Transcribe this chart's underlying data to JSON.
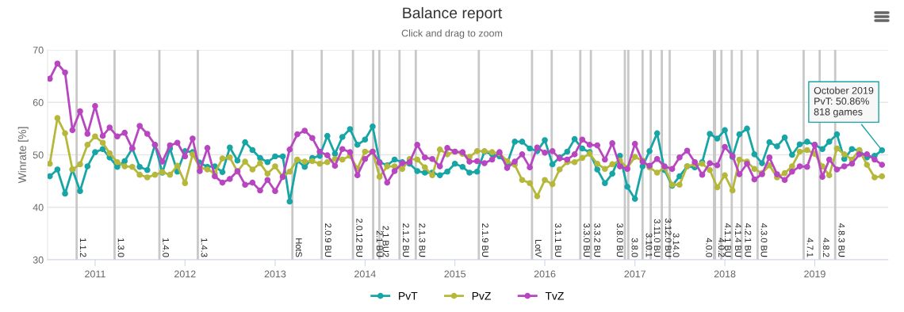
{
  "chart_data": {
    "type": "line",
    "title": "Balance report",
    "subtitle": "Click and drag to zoom",
    "ylabel": "Winrate [%]",
    "x": [
      "2010-07",
      "2010-08",
      "2010-09",
      "2010-10",
      "2010-11",
      "2010-12",
      "2011-01",
      "2011-02",
      "2011-03",
      "2011-04",
      "2011-05",
      "2011-06",
      "2011-07",
      "2011-08",
      "2011-09",
      "2011-10",
      "2011-11",
      "2011-12",
      "2012-01",
      "2012-02",
      "2012-03",
      "2012-04",
      "2012-05",
      "2012-06",
      "2012-07",
      "2012-08",
      "2012-09",
      "2012-10",
      "2012-11",
      "2012-12",
      "2013-01",
      "2013-02",
      "2013-03",
      "2013-04",
      "2013-05",
      "2013-06",
      "2013-07",
      "2013-08",
      "2013-09",
      "2013-10",
      "2013-11",
      "2013-12",
      "2014-01",
      "2014-02",
      "2014-03",
      "2014-04",
      "2014-05",
      "2014-06",
      "2014-07",
      "2014-08",
      "2014-09",
      "2014-10",
      "2014-11",
      "2014-12",
      "2015-01",
      "2015-02",
      "2015-03",
      "2015-04",
      "2015-05",
      "2015-06",
      "2015-07",
      "2015-08",
      "2015-09",
      "2015-10",
      "2015-11",
      "2015-12",
      "2016-01",
      "2016-02",
      "2016-03",
      "2016-04",
      "2016-05",
      "2016-06",
      "2016-07",
      "2016-08",
      "2016-09",
      "2016-10",
      "2016-11",
      "2016-12",
      "2017-01",
      "2017-02",
      "2017-03",
      "2017-04",
      "2017-05",
      "2017-06",
      "2017-07",
      "2017-08",
      "2017-09",
      "2017-10",
      "2017-11",
      "2017-12",
      "2018-01",
      "2018-02",
      "2018-03",
      "2018-04",
      "2018-05",
      "2018-06",
      "2018-07",
      "2018-08",
      "2018-09",
      "2018-10",
      "2018-11",
      "2018-12",
      "2019-01",
      "2019-02",
      "2019-03",
      "2019-04",
      "2019-05",
      "2019-06",
      "2019-07",
      "2019-08",
      "2019-09",
      "2019-10"
    ],
    "series": [
      {
        "name": "PvT",
        "color": "#17a5a5",
        "values": [
          45.9,
          47.2,
          42.6,
          47.2,
          43.1,
          47.8,
          50.5,
          51.1,
          49.5,
          47.7,
          48.8,
          51.2,
          47.7,
          47.1,
          51.9,
          46.6,
          51.2,
          46.8,
          50.7,
          50.5,
          48.5,
          47.7,
          47.8,
          46.7,
          51.4,
          48.9,
          52.4,
          50.9,
          49.4,
          48.6,
          49.7,
          49.7,
          41.1,
          48.9,
          47.7,
          49.4,
          49.8,
          53.6,
          50.2,
          53.4,
          54.9,
          51.9,
          52.9,
          55.4,
          48.6,
          48.0,
          49.1,
          48.6,
          48.3,
          46.9,
          46.6,
          46.6,
          46.1,
          46.8,
          48.3,
          47.7,
          46.6,
          46.8,
          50.6,
          50.1,
          49.7,
          48.3,
          52.5,
          52.5,
          51.2,
          50.7,
          52.8,
          48.2,
          49.5,
          50.6,
          53.0,
          51.2,
          50.5,
          47.2,
          44.6,
          46.4,
          49.8,
          43.9,
          41.6,
          47.8,
          50.7,
          54.1,
          47.1,
          44.1,
          45.9,
          47.8,
          47.6,
          48.6,
          54.0,
          53.1,
          54.7,
          49.6,
          53.9,
          55.0,
          50.1,
          48.4,
          52.4,
          51.6,
          53.3,
          50.0,
          52.0,
          52.5,
          51.9,
          51.1,
          52.5,
          53.9,
          49.2,
          51.1,
          50.8,
          49.5,
          49.8,
          50.86
        ]
      },
      {
        "name": "PvZ",
        "color": "#b5b83a",
        "values": [
          48.3,
          57.0,
          54.1,
          47.2,
          48.2,
          51.9,
          53.5,
          52.3,
          50.3,
          48.6,
          47.8,
          47.7,
          46.2,
          45.7,
          46.2,
          46.7,
          46.2,
          47.9,
          44.6,
          50.1,
          47.6,
          47.2,
          46.5,
          49.3,
          49.5,
          46.8,
          48.7,
          47.2,
          48.4,
          46.4,
          47.8,
          45.8,
          46.8,
          49.1,
          48.7,
          48.8,
          48.3,
          48.6,
          49.2,
          49.1,
          49.8,
          47.4,
          50.6,
          50.6,
          45.8,
          47.8,
          47.8,
          47.3,
          49.2,
          49.1,
          47.6,
          46.1,
          51.0,
          50.1,
          50.6,
          50.2,
          49.6,
          50.7,
          50.7,
          50.5,
          50.3,
          48.8,
          48.1,
          45.2,
          44.6,
          42.1,
          45.2,
          44.4,
          47.2,
          48.6,
          48.6,
          49.4,
          50.2,
          48.3,
          47.3,
          48.2,
          48.9,
          47.5,
          49.6,
          48.9,
          47.6,
          46.6,
          47.6,
          44.3,
          44.3,
          47.8,
          48.2,
          48.3,
          47.1,
          43.8,
          46.1,
          43.2,
          49.1,
          48.7,
          47.3,
          46.5,
          48.0,
          45.7,
          46.5,
          47.8,
          50.6,
          50.9,
          50.2,
          47.8,
          46.1,
          51.2,
          50.1,
          49.1,
          50.9,
          48.1,
          45.7,
          45.9
        ]
      },
      {
        "name": "TvZ",
        "color": "#b846c0",
        "values": [
          64.5,
          67.4,
          65.7,
          54.7,
          58.3,
          54.0,
          59.3,
          53.6,
          55.2,
          53.5,
          54.2,
          51.2,
          55.5,
          54.0,
          51.9,
          48.7,
          51.8,
          52.3,
          49.7,
          53.1,
          46.9,
          51.3,
          45.9,
          44.7,
          45.4,
          46.9,
          44.3,
          44.7,
          43.2,
          45.2,
          43.1,
          45.8,
          51.0,
          53.9,
          54.6,
          53.2,
          50.6,
          49.9,
          47.9,
          51.1,
          50.5,
          46.1,
          49.2,
          50.6,
          48.5,
          44.7,
          46.9,
          48.4,
          48.6,
          51.9,
          49.5,
          49.2,
          47.8,
          51.3,
          50.6,
          50.5,
          48.7,
          48.8,
          48.4,
          49.1,
          50.5,
          47.5,
          48.7,
          50.1,
          47.6,
          51.4,
          50.4,
          50.7,
          49.3,
          49.1,
          50.1,
          52.9,
          51.9,
          51.8,
          49.1,
          52.2,
          47.8,
          47.3,
          52.1,
          48.7,
          47.9,
          49.2,
          47.8,
          47.3,
          49.5,
          50.8,
          48.6,
          46.2,
          48.4,
          48.0,
          51.5,
          49.8,
          46.3,
          48.3,
          45.3,
          46.3,
          49.5,
          46.3,
          45.2,
          46.8,
          47.8,
          47.7,
          51.9,
          45.8,
          49.1,
          47.2,
          47.8,
          48.3,
          50.1,
          50.1,
          49.1,
          48.1
        ]
      }
    ],
    "xlim": [
      "2010-06-22",
      "2019-10-26"
    ],
    "xticks": [
      "2011",
      "2012",
      "2013",
      "2014",
      "2015",
      "2016",
      "2017",
      "2018",
      "2019"
    ],
    "ylim": [
      30,
      70
    ],
    "yticks": [
      30,
      40,
      50,
      60,
      70
    ],
    "grid": "y",
    "legend": "bottom",
    "marker": "circle",
    "line_style": "solid",
    "ref_lines": [
      {
        "axis": "x",
        "value": "2010-10-18",
        "label": "1.1.2",
        "color": "#c8c8c8"
      },
      {
        "axis": "x",
        "value": "2011-03-21",
        "label": "1.3.0",
        "color": "#c8c8c8"
      },
      {
        "axis": "x",
        "value": "2011-09-19",
        "label": "1.4.0",
        "color": "#c8c8c8"
      },
      {
        "axis": "x",
        "value": "2012-02-22",
        "label": "1.4.3",
        "color": "#c8c8c8"
      },
      {
        "axis": "x",
        "value": "2013-03-12",
        "label": "HotS",
        "color": "#c8c8c8"
      },
      {
        "axis": "x",
        "value": "2013-07-09",
        "label": "2.0.9 BU",
        "color": "#c8c8c8"
      },
      {
        "axis": "x",
        "value": "2013-11-13",
        "label": "2.0.12 BU",
        "color": "#c8c8c8"
      },
      {
        "axis": "x",
        "value": "2014-02-03",
        "label": "2.1 BU",
        "color": "#c8c8c8"
      },
      {
        "axis": "x",
        "value": "2014-02-28",
        "label": "2.1 BU2",
        "color": "#c8c8c8"
      },
      {
        "axis": "x",
        "value": "2014-05-21",
        "label": "2.1.2 BU",
        "color": "#c8c8c8"
      },
      {
        "axis": "x",
        "value": "2014-07-26",
        "label": "2.1.3 BU",
        "color": "#c8c8c8"
      },
      {
        "axis": "x",
        "value": "2015-04-08",
        "label": "2.1.9 BU",
        "color": "#c8c8c8"
      },
      {
        "axis": "x",
        "value": "2015-11-10",
        "label": "LotV",
        "color": "#c8c8c8"
      },
      {
        "axis": "x",
        "value": "2016-01-29",
        "label": "3.1.1 BU",
        "color": "#c8c8c8"
      },
      {
        "axis": "x",
        "value": "2016-05-24",
        "label": "3.3.0 BU",
        "color": "#c8c8c8"
      },
      {
        "axis": "x",
        "value": "2016-07-06",
        "label": "3.3.2 BU",
        "color": "#c8c8c8"
      },
      {
        "axis": "x",
        "value": "2016-11-21",
        "label": "3.8.0 BU",
        "color": "#c8c8c8"
      },
      {
        "axis": "x",
        "value": "2016-12-05",
        "label": "3.8.0",
        "color": "#c8c8c8"
      },
      {
        "axis": "x",
        "value": "2017-02-01",
        "label": "3.10.1",
        "color": "#c8c8c8"
      },
      {
        "axis": "x",
        "value": "2017-03-06",
        "label": "3.11.0 BU",
        "color": "#c8c8c8"
      },
      {
        "axis": "x",
        "value": "2017-04-20",
        "label": "3.12.0 BU",
        "color": "#c8c8c8"
      },
      {
        "axis": "x",
        "value": "2017-05-22",
        "label": "3.14.0",
        "color": "#c8c8c8"
      },
      {
        "axis": "x",
        "value": "2017-11-18",
        "label": "4.0.0",
        "color": "#c8c8c8"
      },
      {
        "axis": "x",
        "value": "2017-11-22",
        "label": "4.0.2",
        "color": "#c8c8c8"
      },
      {
        "axis": "x",
        "value": "2017-12-18",
        "label": "4.1.1 BU",
        "color": "#c8c8c8"
      },
      {
        "axis": "x",
        "value": "2018-01-29",
        "label": "4.1.4 BU",
        "color": "#c8c8c8"
      },
      {
        "axis": "x",
        "value": "2018-03-10",
        "label": "4.2.1 BU",
        "color": "#c8c8c8"
      },
      {
        "axis": "x",
        "value": "2018-05-14",
        "label": "4.3.0 BU",
        "color": "#c8c8c8"
      },
      {
        "axis": "x",
        "value": "2018-11-17",
        "label": "4.7.1",
        "color": "#c8c8c8"
      },
      {
        "axis": "x",
        "value": "2019-01-21",
        "label": "4.8.2",
        "color": "#c8c8c8"
      },
      {
        "axis": "x",
        "value": "2019-03-25",
        "label": "4.8.3 BU",
        "color": "#c8c8c8"
      }
    ],
    "annotations": [
      {
        "text": "October 2019\nPvT: 50.86%\n818 games",
        "x": "2019-10",
        "y": 50.86
      }
    ]
  }
}
